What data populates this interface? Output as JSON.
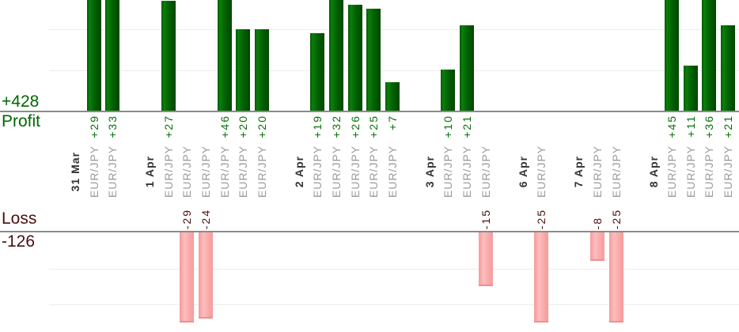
{
  "chart_data": {
    "type": "bar",
    "title": "",
    "instrument": "EUR/JPY",
    "profit": {
      "label": "Profit",
      "total": "+428"
    },
    "loss": {
      "label": "Loss",
      "total": "-126"
    },
    "groups": [
      {
        "date": "31 Mar",
        "trades": [
          29,
          33
        ]
      },
      {
        "date": "1 Apr",
        "trades": [
          27,
          -29,
          -24,
          46,
          20,
          20
        ]
      },
      {
        "date": "2 Apr",
        "trades": [
          19,
          32,
          26,
          25,
          7
        ]
      },
      {
        "date": "3 Apr",
        "trades": [
          10,
          21,
          -15
        ]
      },
      {
        "date": "6 Apr",
        "trades": [
          -25
        ]
      },
      {
        "date": "7 Apr",
        "trades": [
          -8,
          -25
        ]
      },
      {
        "date": "8 Apr",
        "trades": [
          45,
          11,
          36,
          21
        ]
      }
    ],
    "profit_axis": {
      "gridlines": [
        10,
        20
      ],
      "visible_max": 27,
      "grid_on": true
    },
    "loss_axis": {
      "gridlines": [
        -10,
        -20
      ],
      "visible_min": -25,
      "grid_on": true
    },
    "legend_position": "none",
    "colors": {
      "profit_text": "#067306",
      "profit_big_text": "#006600",
      "loss_text": "#4a0e0e",
      "date_label": "#333333",
      "instrument_label": "#9b9b9b",
      "axis_line": "#8a8a8a",
      "gridline": "#ededed",
      "profit_bar_edge": "#045704",
      "profit_bar_light": "#0a7f0a",
      "profit_bar_mid": "#026002",
      "profit_bar_dark": "#004700",
      "loss_bar_edge": "#f49b9b",
      "loss_bar_light": "#fdbdbd",
      "loss_bar_mid": "#f9a6a6",
      "loss_bar_dark": "#f59c9c",
      "loss_bar_bottom": "#ef8f8f"
    }
  }
}
